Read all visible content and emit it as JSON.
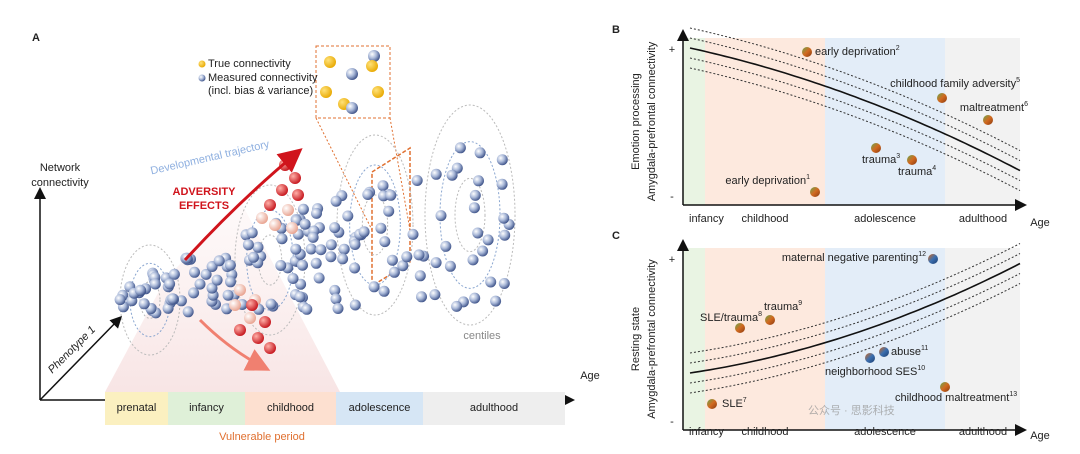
{
  "panel_a": {
    "label": "A",
    "legend": [
      "True connectivity",
      "Measured connectivity",
      "(incl. bias & variance)"
    ],
    "trajectory_label": "Developmental trajectory",
    "adversity_label": [
      "ADVERSITY",
      "EFFECTS"
    ],
    "y_axis_label": [
      "Network",
      "connectivity"
    ],
    "z_axis_label": "Phenotype 1",
    "x_axis_label": "Age",
    "centiles_label": "centiles",
    "stages": [
      "prenatal",
      "infancy",
      "childhood",
      "adolescence",
      "adulthood"
    ],
    "vulnerable_label": "Vulnerable period"
  },
  "panel_b": {
    "label": "B",
    "y_plus": "+",
    "y_minus": "-",
    "y_title": [
      "Emotion processing",
      "Amygdala-prefrontal connectivity"
    ],
    "stages": [
      "infancy",
      "childhood",
      "adolescence",
      "adulthood"
    ],
    "x_axis_label": "Age",
    "studies": [
      {
        "name": "early deprivation",
        "ref": "2"
      },
      {
        "name": "childhood family adversity",
        "ref": "5"
      },
      {
        "name": "maltreatment",
        "ref": "6"
      },
      {
        "name": "trauma",
        "ref": "3"
      },
      {
        "name": "trauma",
        "ref": "4"
      },
      {
        "name": "early deprivation",
        "ref": "1"
      }
    ]
  },
  "panel_c": {
    "label": "C",
    "y_plus": "+",
    "y_minus": "-",
    "y_title": [
      "Resting state",
      "Amygdala-prefrontal connectivity"
    ],
    "stages": [
      "infancy",
      "childhood",
      "adolescence",
      "adulthood"
    ],
    "x_axis_label": "Age",
    "studies": [
      {
        "name": "maternal negative parenting",
        "ref": "12"
      },
      {
        "name": "trauma",
        "ref": "9"
      },
      {
        "name": "SLE/trauma",
        "ref": "8"
      },
      {
        "name": "abuse",
        "ref": "11"
      },
      {
        "name": "neighborhood SES",
        "ref": "10"
      },
      {
        "name": "childhood maltreatment",
        "ref": "13"
      },
      {
        "name": "SLE",
        "ref": "7"
      }
    ]
  },
  "watermark": "公众号 · 思影科技"
}
